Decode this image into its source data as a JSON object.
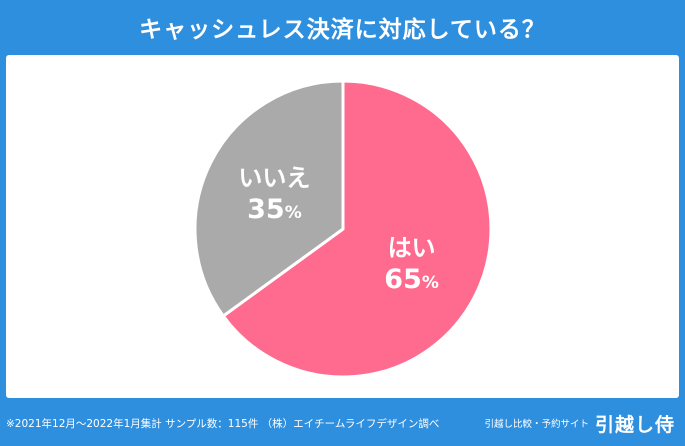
{
  "header": {
    "title": "キャッシュレス決済に対応している？"
  },
  "chart_data": {
    "type": "pie",
    "title": "キャッシュレス決済に対応している？",
    "slices": [
      {
        "label": "はい",
        "value": 65,
        "value_label": "65",
        "unit": "%",
        "color": "#ff6b8e"
      },
      {
        "label": "いいえ",
        "value": 35,
        "value_label": "35",
        "unit": "%",
        "color": "#aaaaaa"
      }
    ]
  },
  "footer": {
    "note": "※2021年12月～2022年1月集計 サンプル数：115件 （株）エイチームライフデザイン調べ",
    "brand_tagline": "引越し比較・予約サイト",
    "brand_logo": "引越し侍"
  }
}
